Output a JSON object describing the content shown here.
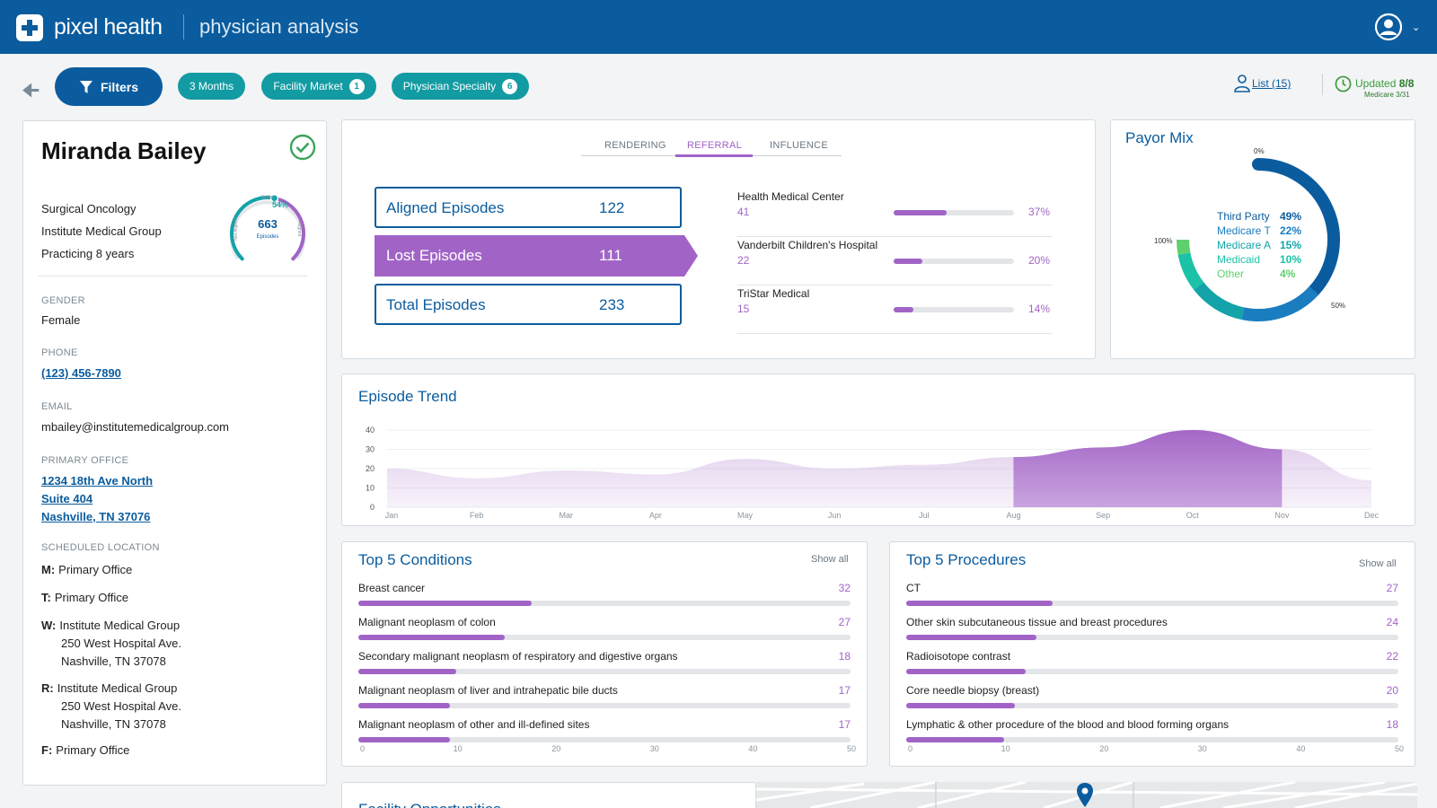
{
  "header": {
    "brand": "pixel health",
    "app_title": "physician analysis"
  },
  "filters": {
    "filters_label": "Filters",
    "pills": [
      {
        "label": "3 Months",
        "count": ""
      },
      {
        "label": "Facility Market",
        "count": "1"
      },
      {
        "label": "Physician Specialty",
        "count": "6"
      }
    ],
    "list_label": "List (15)",
    "updated_label": "Updated",
    "updated_date": "8/8",
    "medicare_note": "Medicare 3/31"
  },
  "profile": {
    "name": "Miranda Bailey",
    "specialty": "Surgical Oncology",
    "group": "Institute Medical Group",
    "practicing": "Practicing 8 years",
    "gauge": {
      "percent_label": "54%",
      "percent": 54,
      "total": "663",
      "total_label": "Episodes",
      "left_label": "Not Aligned",
      "right_label": "Aligned",
      "top_label": "Splitter"
    },
    "gender_label": "GENDER",
    "gender": "Female",
    "phone_label": "PHONE",
    "phone": "(123) 456-7890",
    "email_label": "EMAIL",
    "email": "mbailey@institutemedicalgroup.com",
    "office_label": "PRIMARY OFFICE",
    "office_line1": "1234 18th Ave North",
    "office_line2": "Suite 404",
    "office_line3": "Nashville, TN 37076",
    "sched_label": "SCHEDULED LOCATION",
    "schedule": [
      {
        "day": "M:",
        "lines": [
          "Primary Office"
        ]
      },
      {
        "day": "T:",
        "lines": [
          "Primary Office"
        ]
      },
      {
        "day": "W:",
        "lines": [
          "Institute Medical Group",
          "250 West Hospital Ave.",
          "Nashville, TN 37078"
        ]
      },
      {
        "day": "R:",
        "lines": [
          "Institute Medical Group",
          "250 West Hospital Ave.",
          "Nashville, TN 37078"
        ]
      },
      {
        "day": "F:",
        "lines": [
          "Primary Office"
        ]
      }
    ]
  },
  "referral": {
    "tabs": [
      "RENDERING",
      "REFERRAL",
      "INFLUENCE"
    ],
    "active_tab": "REFERRAL",
    "aligned_label": "Aligned Episodes",
    "aligned_value": "122",
    "lost_label": "Lost Episodes",
    "lost_value": "111",
    "total_label": "Total Episodes",
    "total_value": "233",
    "hospitals": [
      {
        "name": "Health Medical Center",
        "count": "41",
        "pct": "37%",
        "value": 37
      },
      {
        "name": "Vanderbilt Children's Hospital",
        "count": "22",
        "pct": "20%",
        "value": 20
      },
      {
        "name": "TriStar Medical",
        "count": "15",
        "pct": "14%",
        "value": 14
      }
    ]
  },
  "payor": {
    "title": "Payor Mix",
    "ring_labels": [
      "0%",
      "100%",
      "50%"
    ],
    "items": [
      {
        "name": "Third Party",
        "pct": "49%",
        "value": 49,
        "color": "#0b5c9e"
      },
      {
        "name": "Medicare T",
        "pct": "22%",
        "value": 22,
        "color": "#1a7dbf"
      },
      {
        "name": "Medicare A",
        "pct": "15%",
        "value": 15,
        "color": "#13a3a9"
      },
      {
        "name": "Medicaid",
        "pct": "10%",
        "value": 10,
        "color": "#1bc2a6"
      },
      {
        "name": "Other",
        "pct": "4%",
        "value": 4,
        "color": "#5fd06d"
      }
    ]
  },
  "trend": {
    "title": "Episode Trend"
  },
  "conditions": {
    "title": "Top 5 Conditions",
    "show_all": "Show all",
    "axis": [
      "0",
      "10",
      "20",
      "30",
      "40",
      "50"
    ],
    "rows": [
      {
        "label": "Breast cancer",
        "value": 32
      },
      {
        "label": "Malignant neoplasm of colon",
        "value": 27
      },
      {
        "label": "Secondary malignant neoplasm of respiratory and digestive organs",
        "value": 18
      },
      {
        "label": "Malignant neoplasm of liver and intrahepatic bile ducts",
        "value": 17
      },
      {
        "label": "Malignant neoplasm of other and ill-defined sites",
        "value": 17
      }
    ]
  },
  "procedures": {
    "title": "Top 5 Procedures",
    "show_all": "Show all",
    "axis": [
      "0",
      "10",
      "20",
      "30",
      "40",
      "50"
    ],
    "rows": [
      {
        "label": "CT",
        "value": 27
      },
      {
        "label": "Other skin subcutaneous tissue and breast procedures",
        "value": 24
      },
      {
        "label": "Radioisotope contrast",
        "value": 22
      },
      {
        "label": "Core needle biopsy (breast)",
        "value": 20
      },
      {
        "label": "Lymphatic & other procedure of the blood and blood forming organs",
        "value": 18
      }
    ]
  },
  "facility": {
    "title": "Facility Opportunities"
  },
  "chart_data": {
    "type": "area",
    "title": "Episode Trend",
    "x": [
      "Jan",
      "Feb",
      "Mar",
      "Apr",
      "May",
      "Jun",
      "Jul",
      "Aug",
      "Sep",
      "Oct",
      "Nov",
      "Dec"
    ],
    "yticks": [
      "0",
      "10",
      "20",
      "30",
      "40"
    ],
    "ylim": [
      0,
      40
    ],
    "values": [
      20,
      15,
      19,
      17,
      25,
      20,
      22,
      26,
      31,
      40,
      30,
      14
    ],
    "highlight_range": [
      "Aug",
      "Nov"
    ]
  }
}
